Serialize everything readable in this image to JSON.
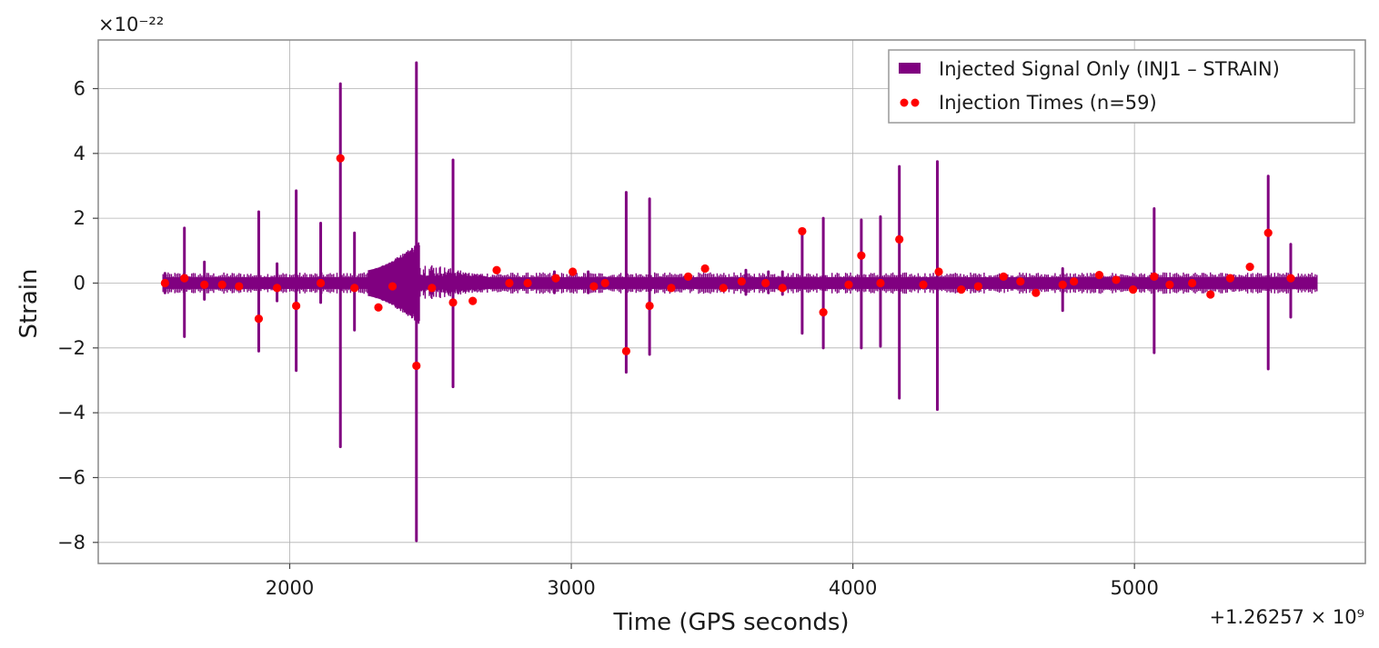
{
  "chart_data": {
    "type": "line",
    "title": "",
    "xlabel": "Time (GPS seconds)",
    "ylabel": "Strain",
    "x_offset_label": "+1.26257 × 10⁹",
    "y_scale_label": "×10⁻²²",
    "xlim": [
      1320,
      5820
    ],
    "ylim": [
      -8.65,
      7.5
    ],
    "x_ticks": [
      2000,
      3000,
      4000,
      5000
    ],
    "x_tick_labels": [
      "2000",
      "3000",
      "4000",
      "5000"
    ],
    "y_ticks": [
      -8,
      -6,
      -4,
      -2,
      0,
      2,
      4,
      6
    ],
    "y_tick_labels": [
      "−8",
      "−6",
      "−4",
      "−2",
      "0",
      "2",
      "4",
      "6"
    ],
    "grid": true,
    "legend_position": "upper right",
    "series": [
      {
        "name": "Injected Signal Only (INJ1 – STRAIN)",
        "kind": "signal",
        "color": "#800080",
        "x_range": [
          1550,
          5650
        ],
        "baseline_amplitude": 0.18,
        "bursts": [
          {
            "x": 1557,
            "max": 0.3,
            "min": -0.3
          },
          {
            "x": 1626,
            "max": 1.7,
            "min": -1.65
          },
          {
            "x": 1697,
            "max": 0.65,
            "min": -0.5
          },
          {
            "x": 1890,
            "max": 2.2,
            "min": -2.1
          },
          {
            "x": 1955,
            "max": 0.6,
            "min": -0.55
          },
          {
            "x": 2023,
            "max": 2.85,
            "min": -2.7
          },
          {
            "x": 2110,
            "max": 1.85,
            "min": -0.6
          },
          {
            "x": 2180,
            "max": 6.15,
            "min": -5.05
          },
          {
            "x": 2230,
            "max": 1.55,
            "min": -1.45
          },
          {
            "x": 2450,
            "max": 6.8,
            "min": -7.95
          },
          {
            "x": 2580,
            "max": 3.8,
            "min": -3.2
          },
          {
            "x": 3195,
            "max": 2.8,
            "min": -2.75
          },
          {
            "x": 3278,
            "max": 2.6,
            "min": -2.2
          },
          {
            "x": 3820,
            "max": 1.6,
            "min": -1.55
          },
          {
            "x": 3895,
            "max": 2.0,
            "min": -2.0
          },
          {
            "x": 4030,
            "max": 1.95,
            "min": -2.0
          },
          {
            "x": 4098,
            "max": 2.05,
            "min": -1.95
          },
          {
            "x": 4165,
            "max": 3.6,
            "min": -3.55
          },
          {
            "x": 4300,
            "max": 3.75,
            "min": -3.9
          },
          {
            "x": 5070,
            "max": 2.3,
            "min": -2.15
          },
          {
            "x": 5475,
            "max": 3.3,
            "min": -2.65
          },
          {
            "x": 5555,
            "max": 1.2,
            "min": -1.05
          },
          {
            "x": 4745,
            "max": 0.45,
            "min": -0.85
          },
          {
            "x": 3620,
            "max": 0.4,
            "min": -0.35
          },
          {
            "x": 3700,
            "max": 0.35,
            "min": -0.3
          },
          {
            "x": 3750,
            "max": 0.35,
            "min": -0.35
          },
          {
            "x": 2940,
            "max": 0.35,
            "min": -0.3
          },
          {
            "x": 3060,
            "max": 0.35,
            "min": -0.3
          }
        ],
        "dense_region": {
          "x_start": 2280,
          "x_end": 2460,
          "max": 1.3,
          "min": -1.3
        },
        "noisy_region": {
          "x_start": 2460,
          "x_end": 2700,
          "max": 0.7,
          "min": -0.7
        }
      },
      {
        "name": "Injection Times (n=59)",
        "kind": "points",
        "color": "#ff0000",
        "points": [
          {
            "x": 1557,
            "y": 0.0
          },
          {
            "x": 1626,
            "y": 0.15
          },
          {
            "x": 1697,
            "y": -0.05
          },
          {
            "x": 1760,
            "y": -0.05
          },
          {
            "x": 1820,
            "y": -0.1
          },
          {
            "x": 1890,
            "y": -1.1
          },
          {
            "x": 1955,
            "y": -0.15
          },
          {
            "x": 2023,
            "y": -0.7
          },
          {
            "x": 2110,
            "y": 0.0
          },
          {
            "x": 2180,
            "y": 3.85
          },
          {
            "x": 2230,
            "y": -0.15
          },
          {
            "x": 2315,
            "y": -0.75
          },
          {
            "x": 2365,
            "y": -0.1
          },
          {
            "x": 2450,
            "y": -2.55
          },
          {
            "x": 2505,
            "y": -0.15
          },
          {
            "x": 2580,
            "y": -0.6
          },
          {
            "x": 2650,
            "y": -0.55
          },
          {
            "x": 2735,
            "y": 0.4
          },
          {
            "x": 2780,
            "y": 0.0
          },
          {
            "x": 2845,
            "y": 0.0
          },
          {
            "x": 2945,
            "y": 0.15
          },
          {
            "x": 3005,
            "y": 0.35
          },
          {
            "x": 3080,
            "y": -0.1
          },
          {
            "x": 3120,
            "y": 0.0
          },
          {
            "x": 3195,
            "y": -2.1
          },
          {
            "x": 3278,
            "y": -0.7
          },
          {
            "x": 3355,
            "y": -0.15
          },
          {
            "x": 3415,
            "y": 0.2
          },
          {
            "x": 3475,
            "y": 0.45
          },
          {
            "x": 3540,
            "y": -0.15
          },
          {
            "x": 3605,
            "y": 0.05
          },
          {
            "x": 3690,
            "y": 0.0
          },
          {
            "x": 3750,
            "y": -0.15
          },
          {
            "x": 3820,
            "y": 1.6
          },
          {
            "x": 3895,
            "y": -0.9
          },
          {
            "x": 3985,
            "y": -0.05
          },
          {
            "x": 4030,
            "y": 0.85
          },
          {
            "x": 4098,
            "y": 0.0
          },
          {
            "x": 4165,
            "y": 1.35
          },
          {
            "x": 4250,
            "y": -0.05
          },
          {
            "x": 4305,
            "y": 0.35
          },
          {
            "x": 4385,
            "y": -0.2
          },
          {
            "x": 4445,
            "y": -0.1
          },
          {
            "x": 4535,
            "y": 0.2
          },
          {
            "x": 4595,
            "y": 0.05
          },
          {
            "x": 4650,
            "y": -0.3
          },
          {
            "x": 4745,
            "y": -0.05
          },
          {
            "x": 4785,
            "y": 0.05
          },
          {
            "x": 4875,
            "y": 0.25
          },
          {
            "x": 4935,
            "y": 0.1
          },
          {
            "x": 4995,
            "y": -0.2
          },
          {
            "x": 5070,
            "y": 0.2
          },
          {
            "x": 5125,
            "y": -0.05
          },
          {
            "x": 5205,
            "y": 0.0
          },
          {
            "x": 5270,
            "y": -0.35
          },
          {
            "x": 5340,
            "y": 0.15
          },
          {
            "x": 5410,
            "y": 0.5
          },
          {
            "x": 5475,
            "y": 1.55
          },
          {
            "x": 5555,
            "y": 0.15
          }
        ]
      }
    ]
  }
}
